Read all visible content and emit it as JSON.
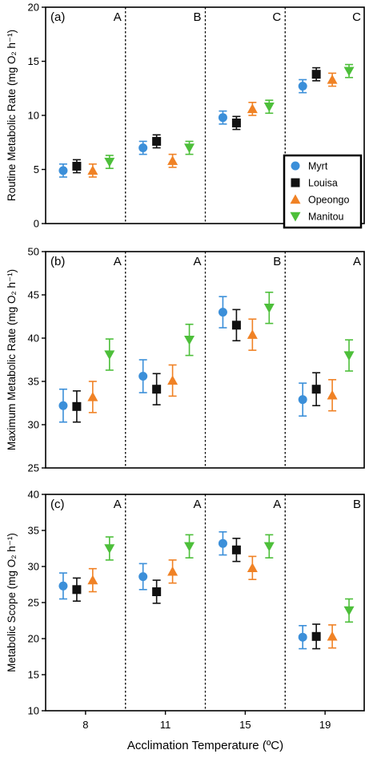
{
  "figure": {
    "xlabel": "Acclimation Temperature (ºC)"
  },
  "colors": {
    "Myrt": "#3b8fd9",
    "Louisa": "#111111",
    "Opeongo": "#f08225",
    "Manitou": "#4dbf3a"
  },
  "chart_data": [
    {
      "type": "scatter",
      "panel_label": "(a)",
      "ylabel": "Routine Metabolic Rate (mg O₂ h⁻¹)",
      "ylim": [
        0,
        20
      ],
      "yticks": [
        0,
        5,
        10,
        15,
        20
      ],
      "categories": [
        "8",
        "11",
        "15",
        "19"
      ],
      "group_letters": [
        "A",
        "B",
        "C",
        "C"
      ],
      "legend": {
        "position": "bottom-right"
      },
      "series": [
        {
          "name": "Myrt",
          "marker": "circle",
          "values": [
            4.9,
            7.0,
            9.8,
            12.7
          ],
          "errors": [
            0.6,
            0.6,
            0.6,
            0.6
          ]
        },
        {
          "name": "Louisa",
          "marker": "square",
          "values": [
            5.3,
            7.6,
            9.3,
            13.8
          ],
          "errors": [
            0.6,
            0.6,
            0.6,
            0.6
          ]
        },
        {
          "name": "Opeongo",
          "marker": "triangle-up",
          "values": [
            4.9,
            5.8,
            10.6,
            13.3
          ],
          "errors": [
            0.6,
            0.6,
            0.6,
            0.6
          ]
        },
        {
          "name": "Manitou",
          "marker": "triangle-down",
          "values": [
            5.7,
            7.0,
            10.8,
            14.1
          ],
          "errors": [
            0.6,
            0.6,
            0.6,
            0.6
          ]
        }
      ]
    },
    {
      "type": "scatter",
      "panel_label": "(b)",
      "ylabel": "Maximum Metabolic Rate (mg O₂ h⁻¹)",
      "ylim": [
        25,
        50
      ],
      "yticks": [
        25,
        30,
        35,
        40,
        45,
        50
      ],
      "categories": [
        "8",
        "11",
        "15",
        "19"
      ],
      "group_letters": [
        "A",
        "A",
        "B",
        "A"
      ],
      "series": [
        {
          "name": "Myrt",
          "marker": "circle",
          "values": [
            32.2,
            35.6,
            43.0,
            32.9
          ],
          "errors": [
            1.9,
            1.9,
            1.8,
            1.9
          ]
        },
        {
          "name": "Louisa",
          "marker": "square",
          "values": [
            32.1,
            34.1,
            41.5,
            34.1
          ],
          "errors": [
            1.8,
            1.8,
            1.8,
            1.9
          ]
        },
        {
          "name": "Opeongo",
          "marker": "triangle-up",
          "values": [
            33.2,
            35.1,
            40.4,
            33.4
          ],
          "errors": [
            1.8,
            1.8,
            1.8,
            1.8
          ]
        },
        {
          "name": "Manitou",
          "marker": "triangle-down",
          "values": [
            38.1,
            39.8,
            43.5,
            38.0
          ],
          "errors": [
            1.8,
            1.8,
            1.8,
            1.8
          ]
        }
      ]
    },
    {
      "type": "scatter",
      "panel_label": "(c)",
      "ylabel": "Metabolic Scope (mg O₂ h⁻¹)",
      "ylim": [
        10,
        40
      ],
      "yticks": [
        10,
        15,
        20,
        25,
        30,
        35,
        40
      ],
      "categories": [
        "8",
        "11",
        "15",
        "19"
      ],
      "group_letters": [
        "A",
        "A",
        "A",
        "B"
      ],
      "series": [
        {
          "name": "Myrt",
          "marker": "circle",
          "values": [
            27.3,
            28.6,
            33.2,
            20.2
          ],
          "errors": [
            1.8,
            1.8,
            1.6,
            1.6
          ]
        },
        {
          "name": "Louisa",
          "marker": "square",
          "values": [
            26.8,
            26.5,
            32.3,
            20.3
          ],
          "errors": [
            1.6,
            1.6,
            1.6,
            1.7
          ]
        },
        {
          "name": "Opeongo",
          "marker": "triangle-up",
          "values": [
            28.1,
            29.3,
            29.8,
            20.3
          ],
          "errors": [
            1.6,
            1.6,
            1.6,
            1.6
          ]
        },
        {
          "name": "Manitou",
          "marker": "triangle-down",
          "values": [
            32.5,
            32.8,
            32.8,
            23.9
          ],
          "errors": [
            1.6,
            1.6,
            1.6,
            1.6
          ]
        }
      ]
    }
  ]
}
